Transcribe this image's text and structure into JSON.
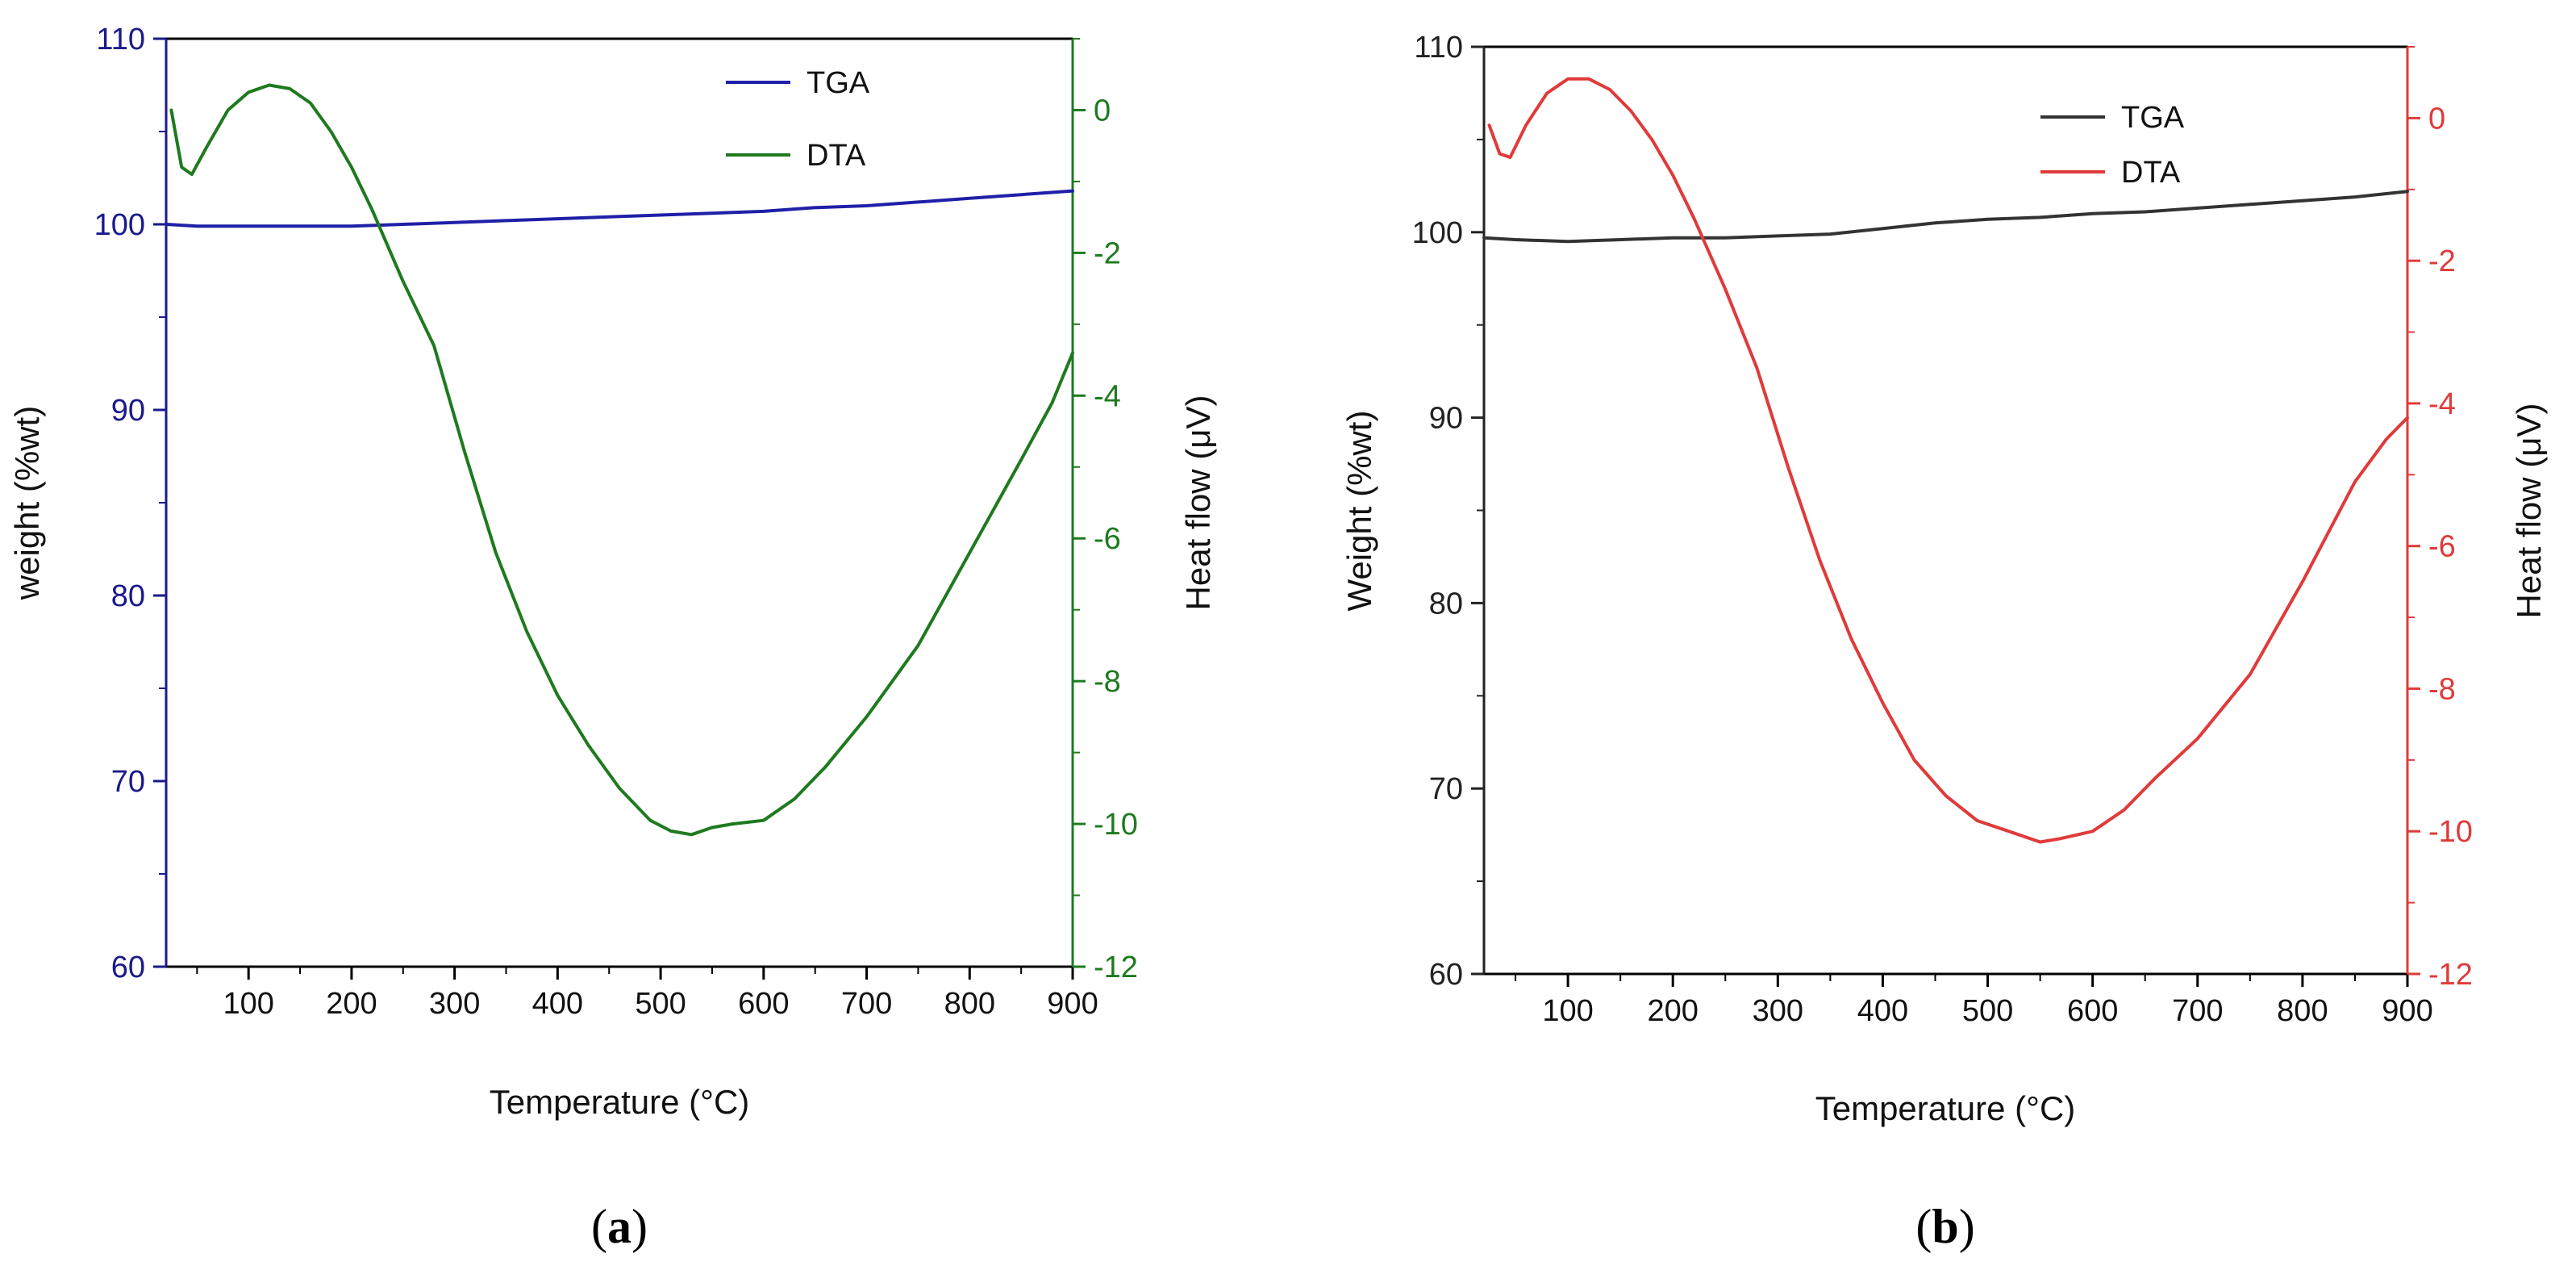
{
  "chart_data": [
    {
      "type": "line",
      "panel_label": "(a)",
      "panel_letter": "a",
      "xlabel": "Temperature (°C)",
      "ylabel_left": "weight (%wt)",
      "ylabel_right": "Heat flow (μV)",
      "xlim": [
        20,
        900
      ],
      "ylim_left": [
        60,
        110
      ],
      "ylim_right": [
        -12,
        1
      ],
      "x_ticks": [
        100,
        200,
        300,
        400,
        500,
        600,
        700,
        800,
        900
      ],
      "y_left_ticks": [
        60,
        70,
        80,
        90,
        100,
        110
      ],
      "y_right_ticks": [
        -12,
        -10,
        -8,
        -6,
        -4,
        -2,
        0
      ],
      "grid": false,
      "legend_position": "top-right",
      "colors": {
        "left_axis": "#1a1a8c",
        "right_axis": "#1e7a1e",
        "frame": "#000000"
      },
      "series": [
        {
          "name": "TGA",
          "axis": "left",
          "color": "#1f1fa8",
          "x": [
            20,
            50,
            100,
            150,
            200,
            250,
            300,
            350,
            400,
            450,
            500,
            550,
            600,
            650,
            700,
            750,
            800,
            850,
            900
          ],
          "y": [
            100.0,
            99.9,
            99.9,
            99.9,
            99.9,
            100.0,
            100.1,
            100.2,
            100.3,
            100.4,
            100.5,
            100.6,
            100.7,
            100.9,
            101.0,
            101.2,
            101.4,
            101.6,
            101.8
          ]
        },
        {
          "name": "DTA",
          "axis": "right",
          "color": "#1e7a1e",
          "x": [
            25,
            35,
            45,
            60,
            80,
            100,
            120,
            140,
            160,
            180,
            200,
            220,
            250,
            280,
            310,
            340,
            370,
            400,
            430,
            460,
            490,
            510,
            530,
            550,
            570,
            600,
            630,
            660,
            700,
            750,
            800,
            850,
            880,
            900
          ],
          "y": [
            0.0,
            -0.8,
            -0.9,
            -0.5,
            0.0,
            0.25,
            0.35,
            0.3,
            0.1,
            -0.3,
            -0.8,
            -1.4,
            -2.4,
            -3.3,
            -4.8,
            -6.2,
            -7.3,
            -8.2,
            -8.9,
            -9.5,
            -9.95,
            -10.1,
            -10.15,
            -10.05,
            -10.0,
            -9.95,
            -9.65,
            -9.2,
            -8.5,
            -7.5,
            -6.2,
            -4.9,
            -4.1,
            -3.4
          ]
        }
      ]
    },
    {
      "type": "line",
      "panel_label": "(b)",
      "panel_letter": "b",
      "xlabel": "Temperature (°C)",
      "ylabel_left": "Weight (%wt)",
      "ylabel_right": "Heat flow (μV)",
      "xlim": [
        20,
        900
      ],
      "ylim_left": [
        60,
        110
      ],
      "ylim_right": [
        -12,
        1
      ],
      "x_ticks": [
        100,
        200,
        300,
        400,
        500,
        600,
        700,
        800,
        900
      ],
      "y_left_ticks": [
        60,
        70,
        80,
        90,
        100,
        110
      ],
      "y_right_ticks": [
        -12,
        -10,
        -8,
        -6,
        -4,
        -2,
        0
      ],
      "grid": false,
      "legend_position": "top-right",
      "colors": {
        "left_axis": "#222222",
        "right_axis": "#e03a3a",
        "frame": "#000000"
      },
      "series": [
        {
          "name": "TGA",
          "axis": "left",
          "color": "#333333",
          "x": [
            20,
            50,
            100,
            150,
            200,
            250,
            300,
            350,
            400,
            450,
            500,
            550,
            600,
            650,
            700,
            750,
            800,
            850,
            900
          ],
          "y": [
            99.7,
            99.6,
            99.5,
            99.6,
            99.7,
            99.7,
            99.8,
            99.9,
            100.2,
            100.5,
            100.7,
            100.8,
            101.0,
            101.1,
            101.3,
            101.5,
            101.7,
            101.9,
            102.2
          ]
        },
        {
          "name": "DTA",
          "axis": "right",
          "color": "#e03a3a",
          "x": [
            25,
            35,
            45,
            60,
            80,
            100,
            120,
            140,
            160,
            180,
            200,
            220,
            250,
            280,
            310,
            340,
            370,
            400,
            430,
            460,
            490,
            520,
            550,
            570,
            600,
            630,
            660,
            700,
            750,
            800,
            850,
            880,
            900
          ],
          "y": [
            -0.1,
            -0.5,
            -0.55,
            -0.1,
            0.35,
            0.55,
            0.55,
            0.4,
            0.1,
            -0.3,
            -0.8,
            -1.4,
            -2.4,
            -3.5,
            -4.9,
            -6.2,
            -7.3,
            -8.2,
            -9.0,
            -9.5,
            -9.85,
            -10.0,
            -10.15,
            -10.1,
            -10.0,
            -9.7,
            -9.25,
            -8.7,
            -7.8,
            -6.5,
            -5.1,
            -4.5,
            -4.2
          ]
        }
      ]
    }
  ]
}
